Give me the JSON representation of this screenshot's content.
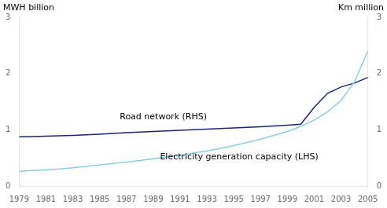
{
  "chart_data": {
    "type": "line",
    "x": [
      1979,
      1980,
      1981,
      1982,
      1983,
      1984,
      1985,
      1986,
      1987,
      1988,
      1989,
      1990,
      1991,
      1992,
      1993,
      1994,
      1995,
      1996,
      1997,
      1998,
      1999,
      2000,
      2001,
      2002,
      2003,
      2004,
      2005
    ],
    "series": [
      {
        "color": "#87CEEB",
        "axis": "y",
        "values": [
          0.26,
          0.275,
          0.29,
          0.305,
          0.325,
          0.35,
          0.375,
          0.4,
          0.425,
          0.455,
          0.485,
          0.515,
          0.545,
          0.585,
          0.625,
          0.67,
          0.72,
          0.775,
          0.835,
          0.9,
          0.97,
          1.06,
          1.17,
          1.32,
          1.52,
          1.85,
          2.4
        ]
      },
      {
        "color": "#1a237e",
        "axis": "y2",
        "values": [
          0.875,
          0.88,
          0.885,
          0.893,
          0.9,
          0.91,
          0.92,
          0.935,
          0.948,
          0.96,
          0.97,
          0.98,
          0.99,
          1.0,
          1.012,
          1.022,
          1.032,
          1.042,
          1.055,
          1.068,
          1.082,
          1.1,
          1.4,
          1.65,
          1.76,
          1.83,
          1.93
        ]
      }
    ],
    "y_label": "MWH billion",
    "y2_label": "Km million",
    "xlim": [
      1979,
      2005
    ],
    "xticks": [
      1979,
      1981,
      1983,
      1985,
      1987,
      1989,
      1991,
      1993,
      1995,
      1997,
      1999,
      2001,
      2003,
      2005
    ],
    "ylim": [
      0,
      3
    ],
    "yticks": [
      0,
      1,
      2,
      3
    ],
    "y2lim": [
      0,
      3
    ],
    "y2ticks": [
      0,
      1,
      2,
      3
    ],
    "annotations": [
      {
        "text": "Road network (RHS)",
        "x": 1986.5,
        "y": 1.22
      },
      {
        "text": "Electricity generation capacity (LHS)",
        "x": 1989.5,
        "y": 0.52
      }
    ],
    "grid": false
  }
}
